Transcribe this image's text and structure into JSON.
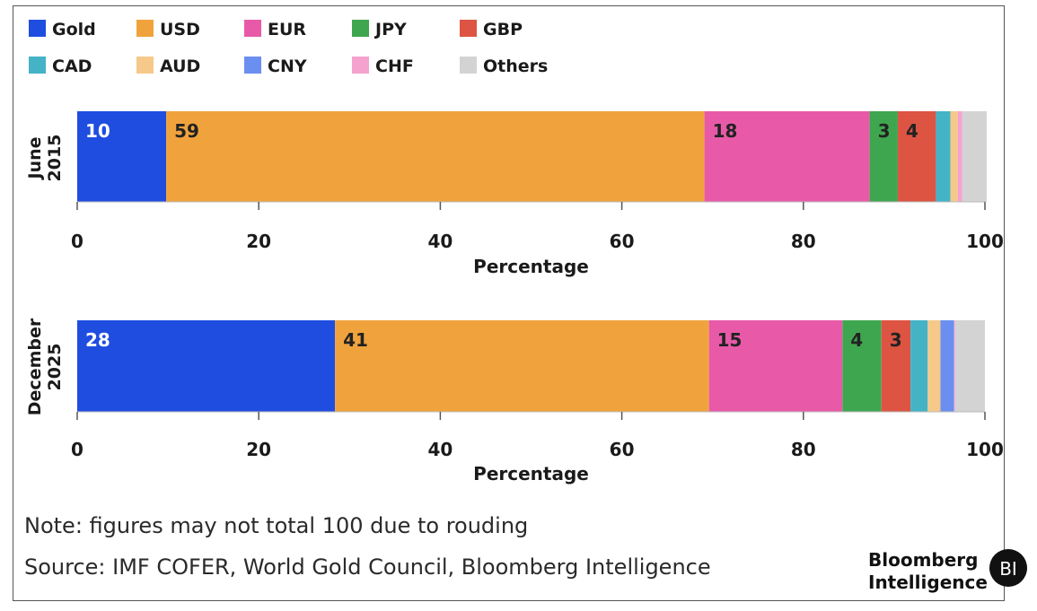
{
  "chart_data": {
    "type": "bar",
    "orientation": "horizontal",
    "stacked": true,
    "legend": {
      "placement": "top-left",
      "entries": [
        {
          "label": "Gold",
          "color": "#1f4de0"
        },
        {
          "label": "USD",
          "color": "#f0a33d"
        },
        {
          "label": "EUR",
          "color": "#e85aa8"
        },
        {
          "label": "JPY",
          "color": "#3fa650"
        },
        {
          "label": "GBP",
          "color": "#dd5442"
        },
        {
          "label": "CAD",
          "color": "#44b3c6"
        },
        {
          "label": "AUD",
          "color": "#f6c98a"
        },
        {
          "label": "CNY",
          "color": "#6b8ff0"
        },
        {
          "label": "CHF",
          "color": "#f5a2cf"
        },
        {
          "label": "Others",
          "color": "#d3d3d3"
        }
      ]
    },
    "panels": [
      {
        "category": "June 2015",
        "category_lines": [
          "June",
          "2015"
        ],
        "xlabel": "Percentage",
        "xlim": [
          0,
          100
        ],
        "xticks": [
          0,
          20,
          40,
          60,
          80,
          100
        ],
        "segments": [
          {
            "name": "Gold",
            "value": 9.8,
            "label": "10",
            "label_color": "#ffffff"
          },
          {
            "name": "USD",
            "value": 59.3,
            "label": "59",
            "label_color": "#222222"
          },
          {
            "name": "EUR",
            "value": 18.2,
            "label": "18",
            "label_color": "#222222"
          },
          {
            "name": "JPY",
            "value": 3.1,
            "label": "3",
            "label_color": "#222222"
          },
          {
            "name": "GBP",
            "value": 4.2,
            "label": "4",
            "label_color": "#222222"
          },
          {
            "name": "CAD",
            "value": 1.6,
            "label": "",
            "label_color": "#222222"
          },
          {
            "name": "AUD",
            "value": 0.8,
            "label": "",
            "label_color": "#222222"
          },
          {
            "name": "CNY",
            "value": 0.0,
            "label": "",
            "label_color": "#222222"
          },
          {
            "name": "CHF",
            "value": 0.5,
            "label": "",
            "label_color": "#222222"
          },
          {
            "name": "Others",
            "value": 2.7,
            "label": "",
            "label_color": "#222222"
          }
        ]
      },
      {
        "category": "December 2025",
        "category_lines": [
          "December",
          "2025"
        ],
        "xlabel": "Percentage",
        "xlim": [
          0,
          100
        ],
        "xticks": [
          0,
          20,
          40,
          60,
          80,
          100
        ],
        "segments": [
          {
            "name": "Gold",
            "value": 28.4,
            "label": "28",
            "label_color": "#ffffff"
          },
          {
            "name": "USD",
            "value": 41.2,
            "label": "41",
            "label_color": "#222222"
          },
          {
            "name": "EUR",
            "value": 14.7,
            "label": "15",
            "label_color": "#222222"
          },
          {
            "name": "JPY",
            "value": 4.3,
            "label": "4",
            "label_color": "#222222"
          },
          {
            "name": "GBP",
            "value": 3.2,
            "label": "3",
            "label_color": "#222222"
          },
          {
            "name": "CAD",
            "value": 1.9,
            "label": "",
            "label_color": "#222222"
          },
          {
            "name": "AUD",
            "value": 1.4,
            "label": "",
            "label_color": "#222222"
          },
          {
            "name": "CNY",
            "value": 1.5,
            "label": "",
            "label_color": "#222222"
          },
          {
            "name": "CHF",
            "value": 0.1,
            "label": "",
            "label_color": "#222222"
          },
          {
            "name": "Others",
            "value": 3.3,
            "label": "",
            "label_color": "#222222"
          }
        ]
      }
    ]
  },
  "footer": {
    "note": "Note: figures may not total 100 due to rouding",
    "source": "Source: IMF COFER, World Gold Council, Bloomberg Intelligence"
  },
  "brand": {
    "line1": "Bloomberg",
    "line2": "Intelligence",
    "badge": "BI"
  }
}
